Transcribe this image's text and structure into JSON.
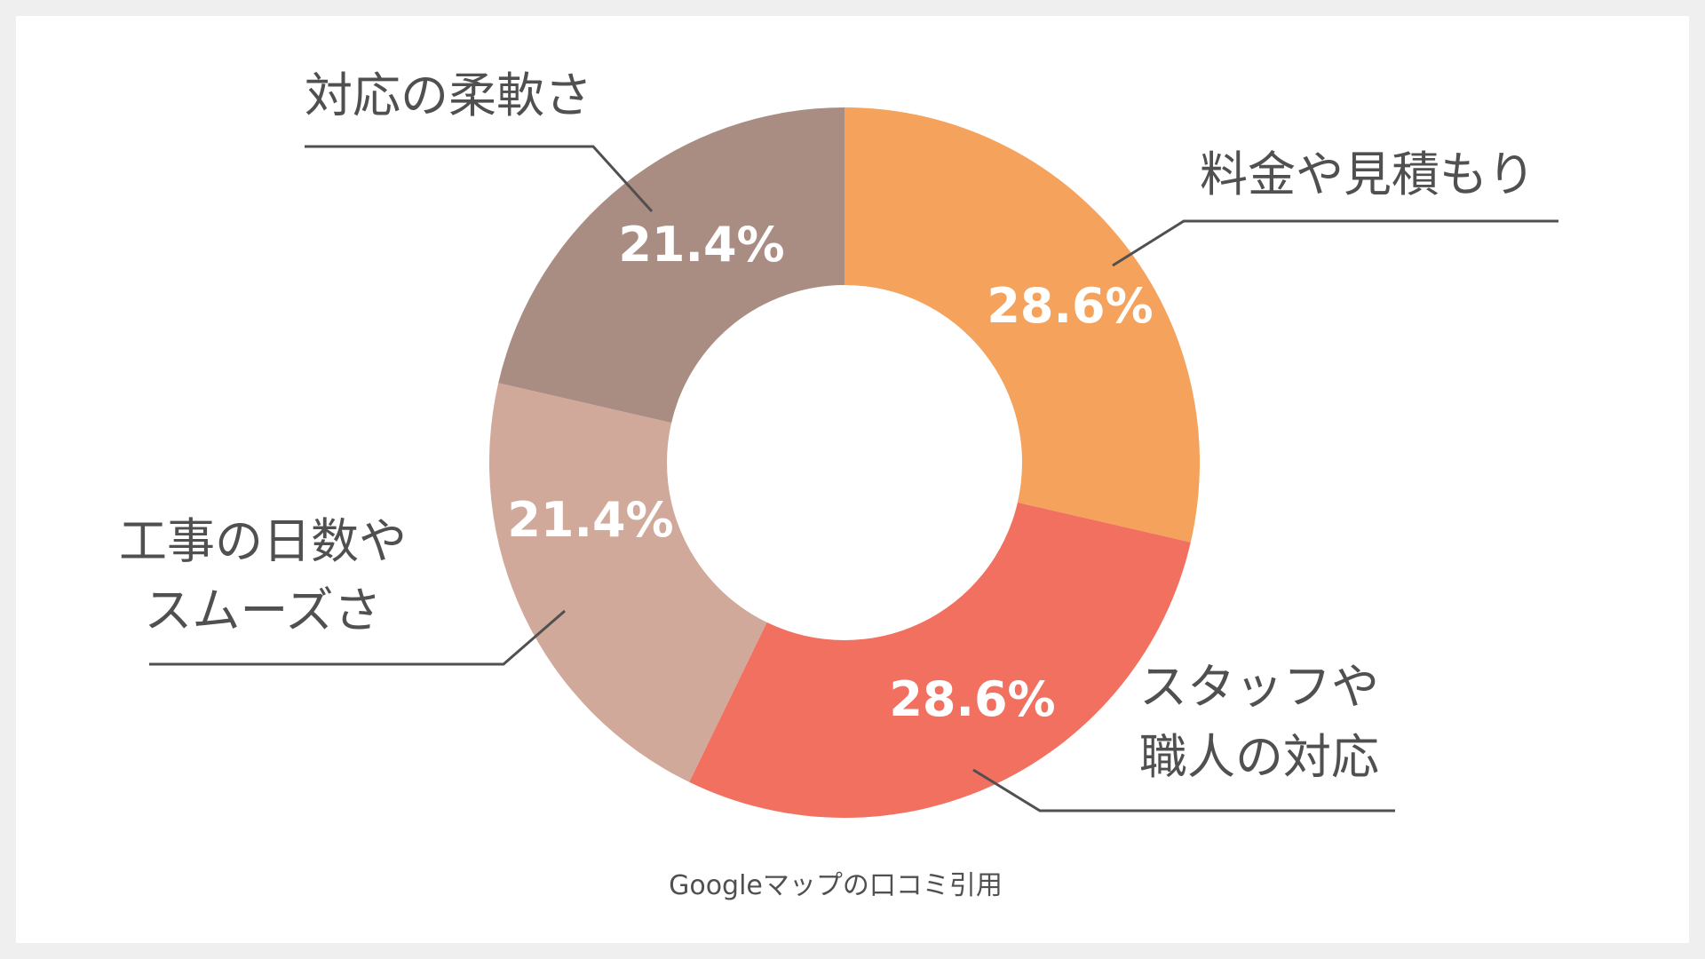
{
  "chart_data": {
    "type": "pie",
    "variant": "donut",
    "categories": [
      "料金や見積もり",
      "スタッフや職人の対応",
      "工事の日数やスムーズさ",
      "対応の柔軟さ"
    ],
    "values": [
      28.6,
      28.6,
      21.4,
      21.4
    ],
    "value_labels": [
      "28.6%",
      "28.6%",
      "21.4%",
      "21.4%"
    ],
    "label_lines": [
      [
        "料金や見積もり"
      ],
      [
        "スタッフや",
        "職人の対応"
      ],
      [
        "工事の日数や",
        "スムーズさ"
      ],
      [
        "対応の柔軟さ"
      ]
    ],
    "colors": [
      "#f4a25c",
      "#f2705f",
      "#d0a99b",
      "#a98d82"
    ],
    "start_angle": "top",
    "direction": "clockwise",
    "legend": "callout-labels"
  },
  "source_note": "Googleマップの口コミ引用",
  "colors": {
    "background": "#efefef",
    "panel": "#ffffff",
    "text": "#505050",
    "leader_line": "#505050",
    "value_label": "#ffffff"
  }
}
